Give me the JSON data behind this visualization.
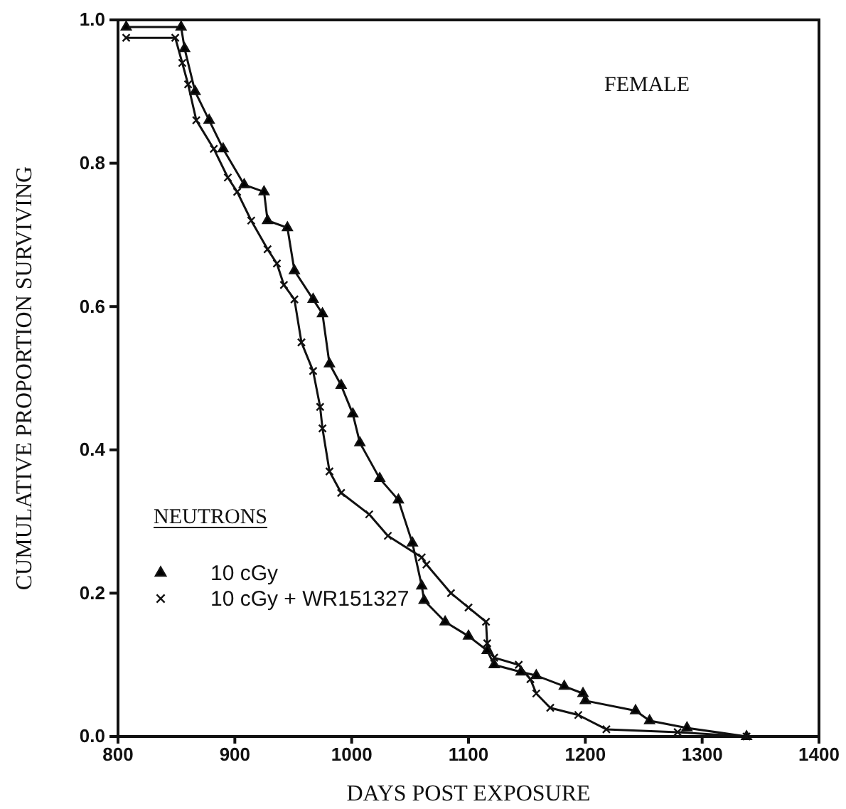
{
  "chart_data": {
    "type": "line",
    "xlabel": "DAYS POST EXPOSURE",
    "ylabel": "CUMULATIVE PROPORTION SURVIVING",
    "xlim": [
      800,
      1400
    ],
    "xticks": [
      800,
      900,
      1000,
      1100,
      1200,
      1300,
      1400
    ],
    "ylim": [
      0,
      1
    ],
    "yticks": [
      {
        "value": 0,
        "label": "0.0"
      },
      {
        "value": 0.2,
        "label": "0.2"
      },
      {
        "value": 0.4,
        "label": "0.4"
      },
      {
        "value": 0.6,
        "label": "0.6"
      },
      {
        "value": 0.8,
        "label": "0.8"
      },
      {
        "value": 1,
        "label": "1.0"
      }
    ],
    "grid": false,
    "legend": "bottom left",
    "legend_title": "NEUTRONS",
    "annotations": [
      "FEMALE"
    ],
    "series": [
      {
        "name": "10 cGy",
        "color": "#111111",
        "marker": "triangle",
        "x": [
          807,
          854,
          857,
          866,
          878,
          890,
          908,
          925,
          928,
          945,
          951,
          967,
          975,
          981,
          991,
          1001,
          1007,
          1024,
          1040,
          1052,
          1060,
          1062,
          1080,
          1100,
          1116,
          1122,
          1145,
          1158,
          1182,
          1198,
          1200,
          1243,
          1255,
          1287,
          1338
        ],
        "values": [
          0.99,
          0.99,
          0.96,
          0.9,
          0.86,
          0.82,
          0.77,
          0.76,
          0.72,
          0.71,
          0.65,
          0.61,
          0.59,
          0.52,
          0.49,
          0.45,
          0.41,
          0.36,
          0.33,
          0.27,
          0.21,
          0.19,
          0.16,
          0.14,
          0.12,
          0.1,
          0.09,
          0.085,
          0.07,
          0.06,
          0.05,
          0.036,
          0.022,
          0.012,
          0
        ]
      },
      {
        "name": "10 cGy + WR151327",
        "color": "#111111",
        "marker": "cross",
        "x": [
          807,
          849,
          855,
          860,
          867,
          882,
          894,
          902,
          914,
          928,
          936,
          942,
          951,
          957,
          967,
          973,
          975,
          981,
          991,
          1015,
          1031,
          1060,
          1064,
          1085,
          1100,
          1115,
          1116,
          1122,
          1143,
          1153,
          1158,
          1170,
          1194,
          1218,
          1279,
          1338
        ],
        "values": [
          0.975,
          0.975,
          0.94,
          0.91,
          0.86,
          0.82,
          0.78,
          0.76,
          0.72,
          0.68,
          0.66,
          0.63,
          0.61,
          0.55,
          0.51,
          0.46,
          0.43,
          0.37,
          0.34,
          0.31,
          0.28,
          0.25,
          0.24,
          0.2,
          0.18,
          0.16,
          0.13,
          0.11,
          0.1,
          0.08,
          0.06,
          0.04,
          0.03,
          0.01,
          0.006,
          0
        ]
      }
    ]
  }
}
